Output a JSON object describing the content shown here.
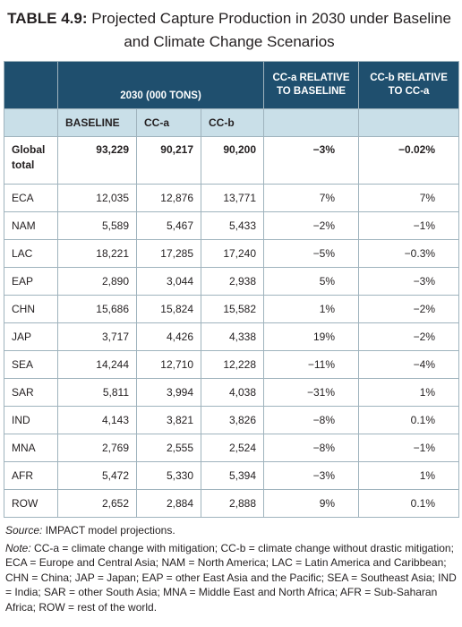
{
  "header": {
    "label": "TABLE 4.9:",
    "title": "Projected Capture Production in 2030 under Baseline and Climate Change Scenarios"
  },
  "table": {
    "group": "2030 (000 TONS)",
    "change_a": "CC-a RELATIVE TO BASELINE",
    "change_b": "CC-b RELATIVE TO CC-a",
    "columns": [
      "BASELINE",
      "CC-a",
      "CC-b"
    ],
    "rows": [
      [
        "Global total",
        "93,229",
        "90,217",
        "90,200",
        "−3%",
        "−0.02%"
      ],
      [
        "ECA",
        "12,035",
        "12,876",
        "13,771",
        "7%",
        "7%"
      ],
      [
        "NAM",
        "5,589",
        "5,467",
        "5,433",
        "−2%",
        "−1%"
      ],
      [
        "LAC",
        "18,221",
        "17,285",
        "17,240",
        "−5%",
        "−0.3%"
      ],
      [
        "EAP",
        "2,890",
        "3,044",
        "2,938",
        "5%",
        "−3%"
      ],
      [
        "CHN",
        "15,686",
        "15,824",
        "15,582",
        "1%",
        "−2%"
      ],
      [
        "JAP",
        "3,717",
        "4,426",
        "4,338",
        "19%",
        "−2%"
      ],
      [
        "SEA",
        "14,244",
        "12,710",
        "12,228",
        "−11%",
        "−4%"
      ],
      [
        "SAR",
        "5,811",
        "3,994",
        "4,038",
        "−31%",
        "1%"
      ],
      [
        "IND",
        "4,143",
        "3,821",
        "3,826",
        "−8%",
        "0.1%"
      ],
      [
        "MNA",
        "2,769",
        "2,555",
        "2,524",
        "−8%",
        "−1%"
      ],
      [
        "AFR",
        "5,472",
        "5,330",
        "5,394",
        "−3%",
        "1%"
      ],
      [
        "ROW",
        "2,652",
        "2,884",
        "2,888",
        "9%",
        "0.1%"
      ]
    ]
  },
  "source": {
    "label": "Source:",
    "text": "IMPACT model projections."
  },
  "note": {
    "label": "Note:",
    "text": "CC-a = climate change with mitigation; CC-b = climate change without drastic mitigation; ECA = Europe and Central Asia; NAM = North America; LAC = Latin America and Caribbean; CHN = China; JAP = Japan; EAP = other East Asia and the Pacific; SEA = Southeast Asia; IND = India; SAR = other South Asia; MNA = Middle East and North Africa; AFR = Sub-Saharan Africa; ROW = rest of the world."
  }
}
